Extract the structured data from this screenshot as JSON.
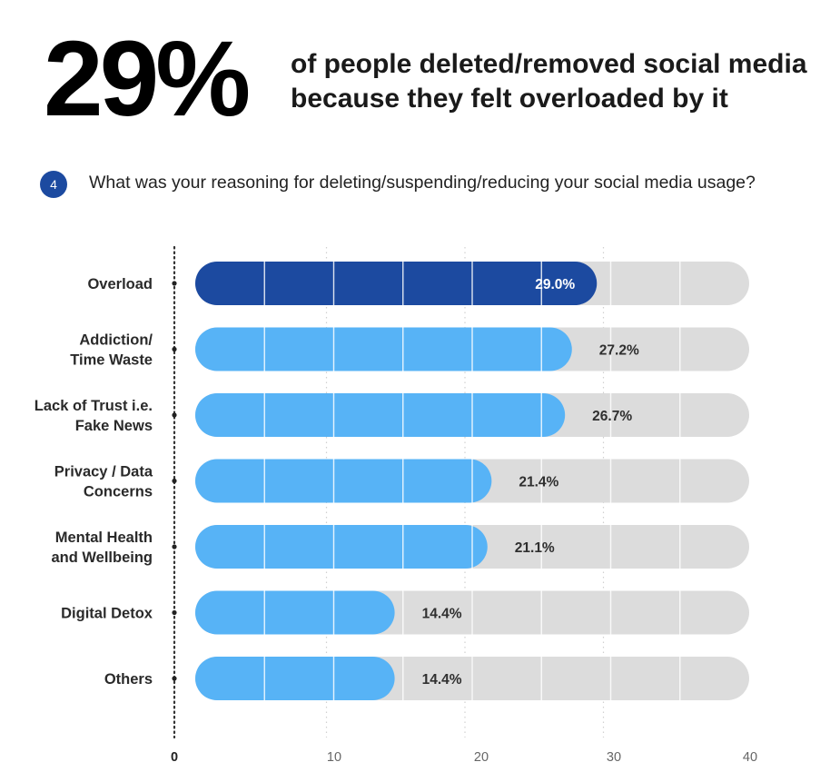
{
  "headline": {
    "stat": "29%",
    "text_line1": "of people deleted/removed social media",
    "text_line2": "because they felt overloaded by it"
  },
  "question": {
    "number": "4",
    "text": "What was your reasoning for deleting/suspending/reducing your social media usage?"
  },
  "colors": {
    "highlight": "#1c4aa0",
    "bar": "#57b3f6",
    "track": "#dcdcdc",
    "badge": "#1c4aa0"
  },
  "chart_data": {
    "type": "bar",
    "orientation": "horizontal",
    "categories": [
      [
        "Overload"
      ],
      [
        "Addiction/",
        "Time Waste"
      ],
      [
        "Lack of Trust i.e.",
        "Fake News"
      ],
      [
        "Privacy / Data",
        "Concerns"
      ],
      [
        "Mental Health",
        "and Wellbeing"
      ],
      [
        "Digital Detox"
      ],
      [
        "Others"
      ]
    ],
    "values": [
      29.0,
      27.2,
      26.7,
      21.4,
      21.1,
      14.4,
      14.4
    ],
    "value_labels": [
      "29.0%",
      "27.2%",
      "26.7%",
      "21.4%",
      "21.1%",
      "14.4%",
      "14.4%"
    ],
    "highlight_index": 0,
    "xlim": [
      0,
      40
    ],
    "xticks": [
      0,
      10,
      20,
      30,
      40
    ],
    "grid": true,
    "title": "",
    "xlabel": "",
    "ylabel": ""
  }
}
